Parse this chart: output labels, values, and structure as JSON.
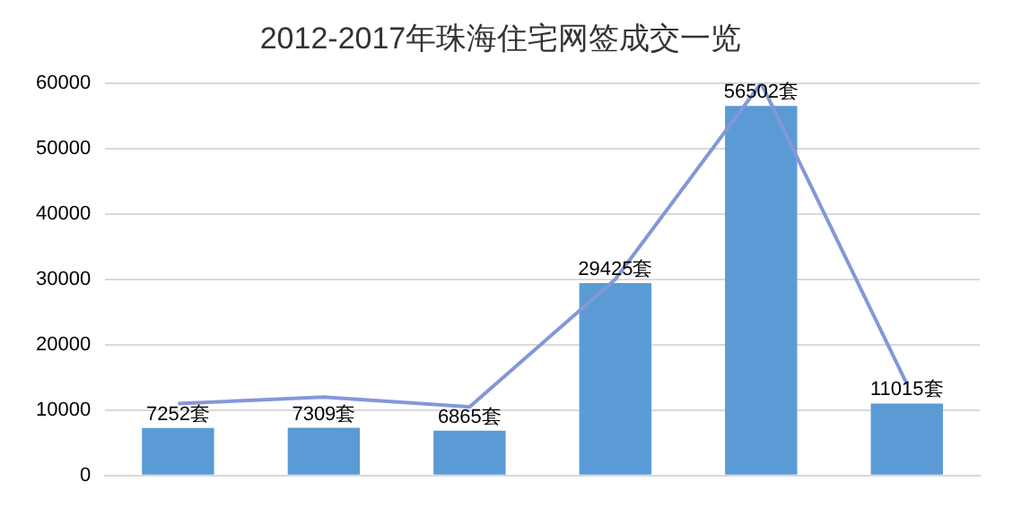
{
  "chart_data": {
    "type": "bar",
    "title": "2012-2017年珠海住宅网签成交一览",
    "categories": [
      null,
      null,
      null,
      null,
      null,
      null
    ],
    "series": [
      {
        "color": "#5b9bd5",
        "values": [
          7252,
          7309,
          6865,
          29425,
          56502,
          11015
        ],
        "value_labels": [
          "7252套",
          "7309套",
          "6865套",
          "29425套",
          "56502套",
          "11015套"
        ]
      },
      {
        "type": "line",
        "color": "#8497d8",
        "values": [
          11000,
          12000,
          10500,
          30000,
          60000,
          14000
        ],
        "marker": "none"
      }
    ],
    "ylim": [
      0,
      60000
    ],
    "yticks": [
      0,
      10000,
      20000,
      30000,
      40000,
      50000,
      60000
    ],
    "grid": "y",
    "legend": false
  }
}
